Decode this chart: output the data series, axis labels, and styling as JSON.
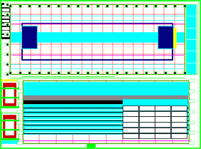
{
  "bg_color": "#ffffff",
  "green": "#00ff00",
  "red": "#ff0000",
  "cyan": "#00ffff",
  "dark_blue": "#0000aa",
  "navy": "#000080",
  "magenta": "#ff00ff",
  "yellow": "#ffff00",
  "black": "#000000",
  "white": "#ffffff",
  "dark_red": "#cc0000",
  "gray": "#888888",
  "lt_cyan": "#ccffff",
  "fig_width": 2.82,
  "fig_height": 2.09,
  "dpi": 100
}
